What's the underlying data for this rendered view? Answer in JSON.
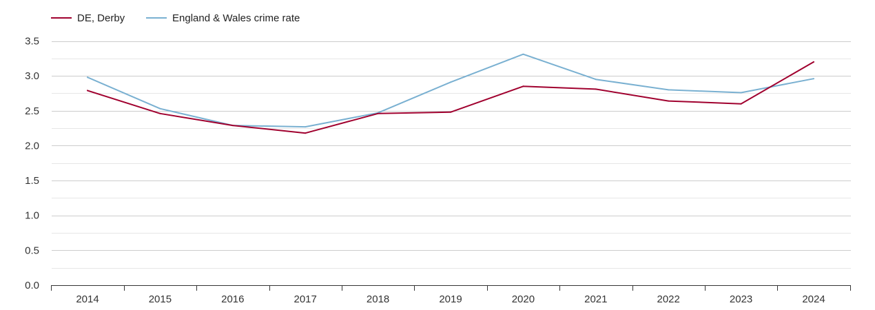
{
  "chart_data": {
    "type": "line",
    "title": "",
    "xlabel": "",
    "ylabel": "",
    "x": [
      "2014",
      "2015",
      "2016",
      "2017",
      "2018",
      "2019",
      "2020",
      "2021",
      "2022",
      "2023",
      "2024"
    ],
    "ylim": [
      0,
      3.5
    ],
    "yticks": [
      "0.0",
      "0.5",
      "1.0",
      "1.5",
      "2.0",
      "2.5",
      "3.0",
      "3.5"
    ],
    "grid": true,
    "legend_position": "top-left",
    "series": [
      {
        "name": "DE, Derby",
        "color": "#a0002e",
        "values": [
          2.79,
          2.46,
          2.29,
          2.18,
          2.46,
          2.48,
          2.85,
          2.81,
          2.64,
          2.6,
          3.2
        ]
      },
      {
        "name": "England & Wales crime rate",
        "color": "#79b0d1",
        "values": [
          2.98,
          2.53,
          2.29,
          2.27,
          2.47,
          2.91,
          3.31,
          2.95,
          2.8,
          2.76,
          2.96
        ]
      }
    ]
  }
}
